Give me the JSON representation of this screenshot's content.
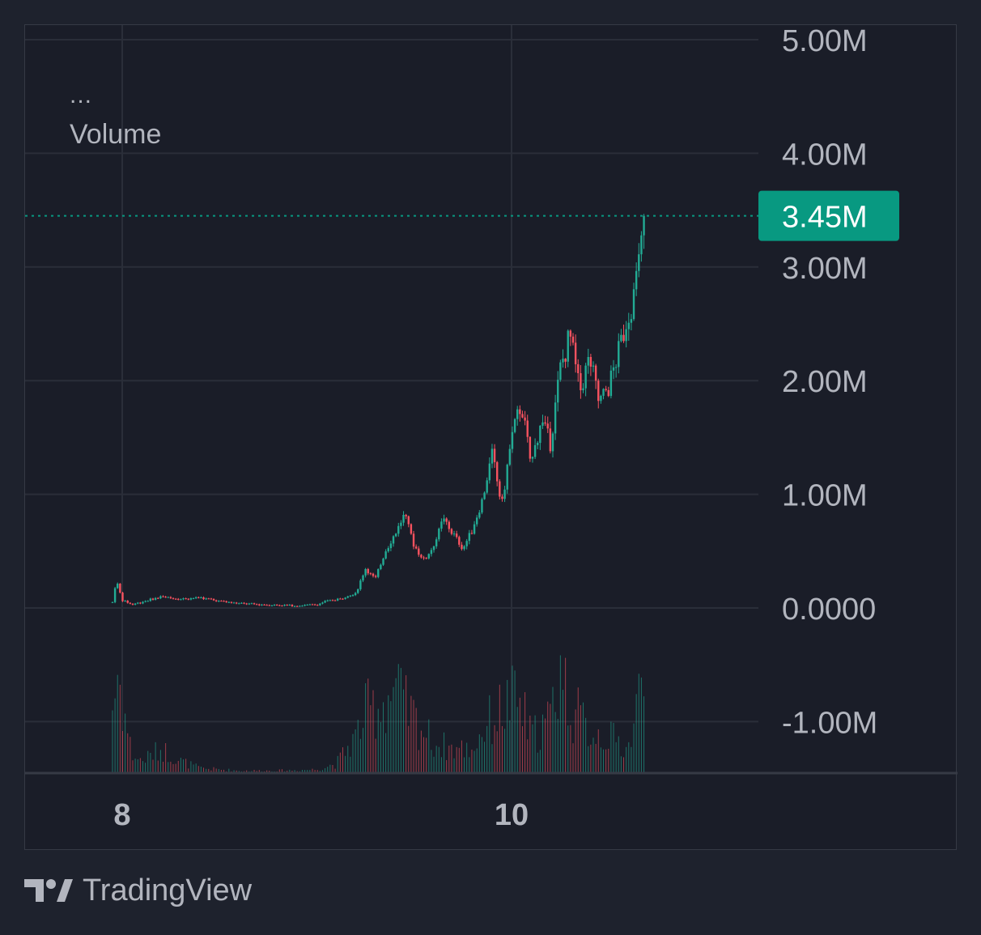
{
  "legend": {
    "menu": "...",
    "indicator": "Volume"
  },
  "branding": {
    "name": "TradingView",
    "logo_icon": "tradingview-logo-icon"
  },
  "colors": {
    "background": "#1e222d",
    "pane": "#1a1d28",
    "grid": "#2a2e39",
    "up": "#22ab94",
    "down": "#f7525f",
    "text": "#b2b5be",
    "last_price_badge": "#089981"
  },
  "chart_data": {
    "type": "candlestick",
    "y_ticks": [
      {
        "value": 5000000,
        "label": "5.00M"
      },
      {
        "value": 4000000,
        "label": "4.00M"
      },
      {
        "value": 3000000,
        "label": "3.00M"
      },
      {
        "value": 2000000,
        "label": "2.00M"
      },
      {
        "value": 1000000,
        "label": "1.00M"
      },
      {
        "value": 0,
        "label": "0.0000"
      },
      {
        "value": -1000000,
        "label": "-1.00M"
      }
    ],
    "x_ticks": [
      {
        "day": 8,
        "label": "8"
      },
      {
        "day": 10,
        "label": "10"
      }
    ],
    "ylim": [
      -1400000,
      5150000
    ],
    "xlim": [
      7.5,
      11.25
    ],
    "last_price": {
      "value": 3450000,
      "label": "3.45M"
    },
    "price_path": [
      [
        7.95,
        0.05
      ],
      [
        7.97,
        0.25
      ],
      [
        8.0,
        0.07
      ],
      [
        8.05,
        0.03
      ],
      [
        8.12,
        0.06
      ],
      [
        8.2,
        0.1
      ],
      [
        8.3,
        0.08
      ],
      [
        8.4,
        0.09
      ],
      [
        8.5,
        0.06
      ],
      [
        8.6,
        0.04
      ],
      [
        8.7,
        0.03
      ],
      [
        8.8,
        0.025
      ],
      [
        8.9,
        0.02
      ],
      [
        9.0,
        0.03
      ],
      [
        9.05,
        0.06
      ],
      [
        9.12,
        0.08
      ],
      [
        9.2,
        0.13
      ],
      [
        9.25,
        0.35
      ],
      [
        9.3,
        0.25
      ],
      [
        9.35,
        0.5
      ],
      [
        9.4,
        0.65
      ],
      [
        9.45,
        0.82
      ],
      [
        9.5,
        0.55
      ],
      [
        9.55,
        0.42
      ],
      [
        9.6,
        0.55
      ],
      [
        9.65,
        0.78
      ],
      [
        9.7,
        0.65
      ],
      [
        9.75,
        0.52
      ],
      [
        9.8,
        0.7
      ],
      [
        9.85,
        0.95
      ],
      [
        9.9,
        1.35
      ],
      [
        9.95,
        0.9
      ],
      [
        10.0,
        1.5
      ],
      [
        10.05,
        1.8
      ],
      [
        10.1,
        1.25
      ],
      [
        10.15,
        1.65
      ],
      [
        10.2,
        1.45
      ],
      [
        10.25,
        2.1
      ],
      [
        10.3,
        2.4
      ],
      [
        10.35,
        1.9
      ],
      [
        10.4,
        2.2
      ],
      [
        10.45,
        1.8
      ],
      [
        10.5,
        1.95
      ],
      [
        10.55,
        2.25
      ],
      [
        10.6,
        2.6
      ],
      [
        10.63,
        2.75
      ],
      [
        10.66,
        3.1
      ],
      [
        10.68,
        3.55
      ]
    ],
    "volume_profile": [
      [
        7.95,
        0.55
      ],
      [
        7.98,
        0.85
      ],
      [
        8.0,
        0.6
      ],
      [
        8.05,
        0.15
      ],
      [
        8.1,
        0.1
      ],
      [
        8.2,
        0.2
      ],
      [
        8.3,
        0.1
      ],
      [
        8.4,
        0.04
      ],
      [
        8.6,
        0.02
      ],
      [
        8.8,
        0.02
      ],
      [
        9.0,
        0.03
      ],
      [
        9.1,
        0.08
      ],
      [
        9.2,
        0.3
      ],
      [
        9.25,
        0.5
      ],
      [
        9.35,
        0.6
      ],
      [
        9.4,
        0.7
      ],
      [
        9.45,
        0.55
      ],
      [
        9.5,
        0.45
      ],
      [
        9.6,
        0.25
      ],
      [
        9.7,
        0.2
      ],
      [
        9.8,
        0.2
      ],
      [
        9.85,
        0.35
      ],
      [
        9.9,
        0.45
      ],
      [
        10.0,
        0.6
      ],
      [
        10.05,
        0.55
      ],
      [
        10.1,
        0.3
      ],
      [
        10.2,
        0.45
      ],
      [
        10.25,
        0.9
      ],
      [
        10.3,
        0.55
      ],
      [
        10.4,
        0.35
      ],
      [
        10.5,
        0.3
      ],
      [
        10.55,
        0.25
      ],
      [
        10.6,
        0.2
      ],
      [
        10.65,
        0.6
      ],
      [
        10.68,
        0.75
      ]
    ]
  }
}
